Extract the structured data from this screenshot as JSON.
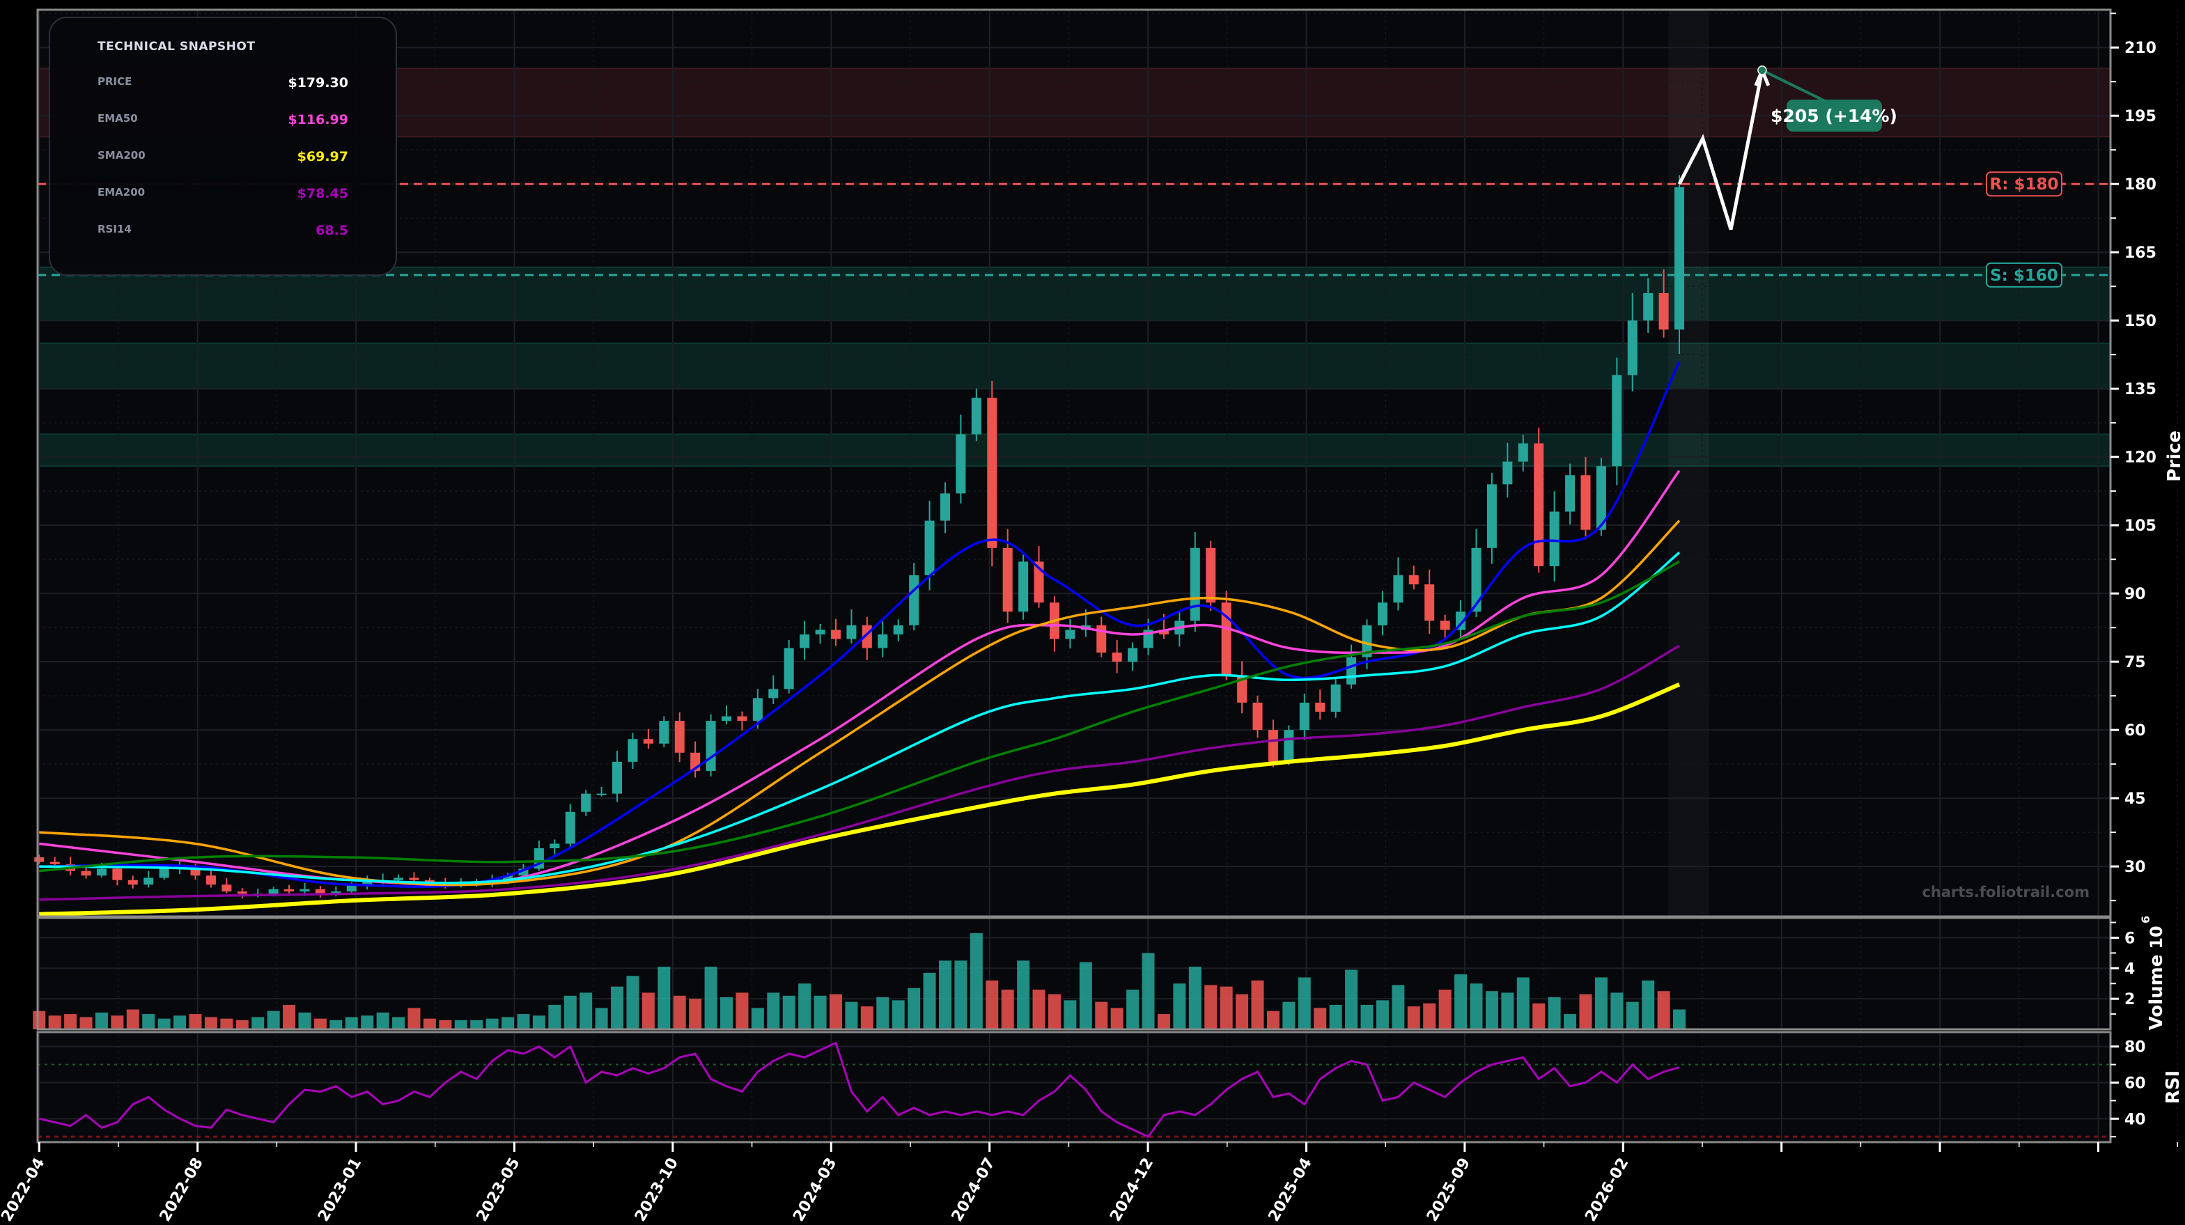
{
  "snapshot": {
    "title": "TECHNICAL SNAPSHOT",
    "rows": [
      {
        "label": "PRICE",
        "value": "$179.30",
        "color": "#ffffff"
      },
      {
        "label": "EMA50",
        "value": "$116.99",
        "color": "#ff44dd"
      },
      {
        "label": "SMA200",
        "value": "$69.97",
        "color": "#ffee00"
      },
      {
        "label": "EMA200",
        "value": "$78.45",
        "color": "#aa00bb"
      },
      {
        "label": "RSI14",
        "value": "68.5",
        "color": "#aa00bb"
      }
    ]
  },
  "watermark": "charts.foliotrail.com",
  "chart_data": {
    "type": "candlestick",
    "x_tick_labels": [
      "2022-04",
      "2022-08",
      "2023-01",
      "2023-05",
      "2023-10",
      "2024-03",
      "2024-07",
      "2024-12",
      "2025-04",
      "2025-09",
      "2026-02",
      "",
      "",
      ""
    ],
    "x_tick_bars": [
      0,
      10.14,
      20.28,
      30.42,
      40.56,
      50.7,
      60.84,
      70.98,
      81.12,
      91.26,
      101.4,
      111.54,
      121.68,
      131.82
    ],
    "xlim": [
      -0.1,
      132.6
    ],
    "price": {
      "ylabel": "Price",
      "ylim": [
        19,
        218.3
      ],
      "yticks": [
        30,
        45,
        60,
        75,
        90,
        105,
        120,
        135,
        150,
        165,
        180,
        195,
        210
      ],
      "first_open": 32,
      "closes": [
        31,
        30.5,
        29,
        28,
        29.5,
        27,
        26,
        27.5,
        29.5,
        30,
        28,
        26,
        24.5,
        24,
        24,
        25,
        24.5,
        25,
        24,
        24.5,
        26,
        27,
        27,
        27.5,
        27,
        26.5,
        26,
        26,
        26.5,
        27,
        28,
        29.5,
        34,
        35,
        42,
        46,
        46,
        53,
        58,
        57,
        62,
        55,
        51,
        62,
        63,
        62,
        67,
        69,
        78,
        81,
        82,
        80,
        83,
        78,
        81,
        83,
        94,
        106,
        112,
        125,
        133,
        100,
        86,
        97,
        88,
        80,
        82,
        83,
        77,
        75,
        78,
        82,
        81,
        84,
        100,
        88,
        72,
        66,
        60,
        53,
        60,
        66,
        64,
        70,
        76,
        83,
        88,
        94,
        92,
        84,
        82,
        86,
        100,
        114,
        119,
        123,
        96,
        108,
        116,
        104,
        118,
        138,
        150,
        156,
        148,
        179.3
      ]
    },
    "indicators": {
      "bars": [
        0,
        10,
        20,
        30,
        40,
        50,
        60,
        65,
        70,
        75,
        80,
        85,
        90,
        95,
        100,
        105
      ],
      "series": [
        {
          "color": "#0000ff",
          "values": [
            30,
            30,
            26,
            28,
            47,
            72,
            101,
            93,
            83,
            87,
            72,
            75,
            80,
            100,
            105,
            141
          ]
        },
        {
          "color": "#ff44dd",
          "name": "EMA50",
          "values": [
            35,
            31,
            27,
            27,
            39,
            58,
            80,
            83,
            81,
            83,
            78,
            77,
            78.5,
            89,
            94,
            117
          ]
        },
        {
          "color": "#ffa500",
          "values": [
            37.5,
            35,
            27.5,
            26.5,
            34,
            55,
            77,
            84,
            87,
            89,
            86,
            79,
            78,
            85,
            89,
            106
          ]
        },
        {
          "color": "#00ffff",
          "values": [
            30,
            29.5,
            27,
            27,
            34,
            47,
            63,
            67,
            69,
            72,
            71,
            72,
            74,
            81,
            85,
            99
          ]
        },
        {
          "color": "#008000",
          "values": [
            29,
            32,
            32,
            31,
            33,
            41,
            53,
            58,
            64,
            69,
            74,
            77,
            79,
            85,
            88,
            97
          ]
        },
        {
          "color": "#880099",
          "name": "EMA200",
          "values": [
            22.7,
            23.5,
            24,
            25,
            29,
            37,
            47,
            51,
            53,
            56,
            58,
            59,
            61,
            65,
            69,
            78.5
          ]
        },
        {
          "color": "#ffff00",
          "name": "SMA200",
          "values": [
            19.5,
            20.5,
            22.5,
            24,
            28,
            36,
            43,
            46,
            48,
            51,
            53,
            54.5,
            56.5,
            60,
            63,
            70
          ]
        }
      ]
    },
    "zones": [
      {
        "from": 190.4,
        "to": 205.4,
        "color": "#3a1a1e"
      },
      {
        "from": 150,
        "to": 161.7,
        "color": "#0c3a33"
      },
      {
        "from": 135,
        "to": 145,
        "color": "#0c3a33"
      },
      {
        "from": 118,
        "to": 125,
        "color": "#0c3a33"
      }
    ],
    "levels": [
      {
        "label": "R: $180",
        "value": 180,
        "color": "#ef5350"
      },
      {
        "label": "S: $160",
        "value": 160,
        "color": "#26a69a"
      }
    ],
    "forecast": {
      "points": [
        [
          105,
          180
        ],
        [
          106.5,
          190
        ],
        [
          108.3,
          170
        ],
        [
          110.3,
          205
        ]
      ],
      "label": "$205 (+14%)",
      "color": "#1b7a5e"
    },
    "volume": {
      "ylabel": "Volume",
      "offset_label": "10",
      "offset_exp": "6",
      "ylim": [
        0,
        7.3
      ],
      "yticks": [
        2,
        4,
        6
      ],
      "values": [
        1.2,
        0.9,
        1.0,
        0.8,
        1.1,
        0.9,
        1.3,
        1.0,
        0.7,
        0.9,
        1.0,
        0.8,
        0.7,
        0.6,
        0.8,
        1.2,
        1.6,
        1.1,
        0.7,
        0.6,
        0.8,
        0.9,
        1.1,
        0.8,
        1.4,
        0.7,
        0.6,
        0.6,
        0.6,
        0.7,
        0.8,
        1.0,
        0.9,
        1.6,
        2.2,
        2.4,
        1.4,
        2.8,
        3.5,
        2.4,
        4.1,
        2.2,
        2.0,
        4.1,
        2.1,
        2.4,
        1.4,
        2.4,
        2.2,
        3.0,
        2.2,
        2.3,
        1.8,
        1.5,
        2.1,
        1.9,
        2.7,
        3.7,
        4.5,
        4.5,
        6.3,
        3.2,
        2.6,
        4.5,
        2.6,
        2.3,
        1.9,
        4.4,
        1.8,
        1.4,
        2.6,
        5.0,
        1.0,
        3.0,
        4.1,
        2.9,
        2.8,
        2.3,
        3.2,
        1.2,
        1.8,
        3.4,
        1.4,
        1.6,
        3.9,
        1.6,
        1.9,
        2.9,
        1.5,
        1.7,
        2.6,
        3.6,
        3.0,
        2.5,
        2.4,
        3.4,
        1.7,
        2.1,
        1.0,
        2.3,
        3.4,
        2.4,
        1.8,
        3.2,
        2.5,
        1.3
      ]
    },
    "rsi": {
      "ylabel": "RSI",
      "ylim": [
        27,
        88
      ],
      "yticks": [
        40,
        60,
        80
      ],
      "overbought": 70,
      "oversold": 30,
      "color": "#aa00bb",
      "values": [
        40,
        38,
        36,
        42,
        35,
        38,
        48,
        52,
        45,
        40,
        36,
        35,
        45,
        42,
        40,
        38,
        48,
        56,
        55,
        58,
        52,
        55,
        48,
        50,
        55,
        52,
        60,
        66,
        62,
        72,
        78,
        76,
        80,
        74,
        80,
        60,
        66,
        64,
        68,
        65,
        68,
        74,
        76,
        62,
        58,
        55,
        66,
        72,
        76,
        74,
        78,
        82,
        55,
        44,
        52,
        42,
        46,
        42,
        44,
        42,
        44,
        42,
        44,
        42,
        50,
        55,
        64,
        56,
        44,
        38,
        34,
        30,
        42,
        44,
        42,
        48,
        56,
        62,
        66,
        52,
        54,
        48,
        62,
        68,
        72,
        70,
        50,
        52,
        60,
        56,
        52,
        60,
        66,
        70,
        72,
        74,
        62,
        68,
        58,
        60,
        66,
        60,
        70,
        62,
        66,
        68.5
      ]
    },
    "colors": {
      "up": "#26a69a",
      "down": "#ef5350"
    }
  }
}
